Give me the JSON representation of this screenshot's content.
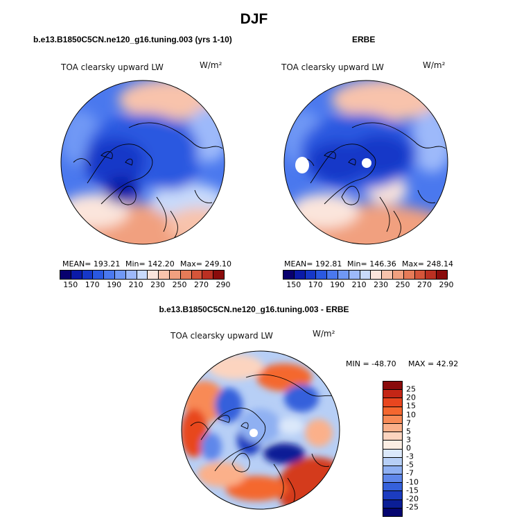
{
  "figure": {
    "title": "DJF",
    "panels": [
      {
        "title": "b.e13.B1850C5CN.ne120_g16.tuning.003 (yrs 1-10)",
        "variable": "TOA clearsky upward LW",
        "units": "W/m²",
        "stats": {
          "mean": "MEAN= 193.21",
          "min": "Min= 142.20",
          "max": "Max= 249.10"
        }
      },
      {
        "title": "ERBE",
        "variable": "TOA clearsky upward LW",
        "units": "W/m²",
        "stats": {
          "mean": "MEAN= 192.81",
          "min": "Min= 146.36",
          "max": "Max= 248.14"
        }
      },
      {
        "title": "b.e13.B1850C5CN.ne120_g16.tuning.003 - ERBE",
        "variable": "TOA clearsky upward LW",
        "units": "W/m²",
        "stats": {
          "min": "MIN = -48.70",
          "max": "MAX =  42.92"
        }
      }
    ],
    "abs_colorbar": {
      "tick_labels": [
        "150",
        "170",
        "190",
        "210",
        "230",
        "250",
        "270",
        "290"
      ],
      "colors": [
        "#08006e",
        "#0a1aa8",
        "#1637c8",
        "#2a58e0",
        "#4a78ee",
        "#7098f5",
        "#9db9fa",
        "#c8dafb",
        "#fbe5dc",
        "#f8c3ac",
        "#f1a07f",
        "#e57b58",
        "#d5553a",
        "#bb3022",
        "#8a0b0b"
      ]
    },
    "diff_colorbar": {
      "tick_labels": [
        "25",
        "20",
        "15",
        "10",
        "7",
        "5",
        "3",
        "0",
        "-3",
        "-5",
        "-7",
        "-10",
        "-15",
        "-20",
        "-25"
      ],
      "colors": [
        "#8a0b0b",
        "#c42616",
        "#e8461f",
        "#f4672f",
        "#f88a56",
        "#fbb08a",
        "#fcd4bf",
        "#fbede3",
        "#dbe8fa",
        "#b7cff6",
        "#8fb0f2",
        "#5f87ea",
        "#3561db",
        "#1c3cc0",
        "#0b1e96",
        "#050570"
      ]
    }
  },
  "chart_data": {
    "type": "heatmap",
    "projection": "north-polar stereographic",
    "season": "DJF",
    "variable": "TOA clearsky upward LW",
    "units": "W/m²",
    "maps": [
      {
        "name": "b.e13.B1850C5CN.ne120_g16.tuning.003 (yrs 1-10)",
        "mean": 193.21,
        "min": 142.2,
        "max": 249.1
      },
      {
        "name": "ERBE",
        "mean": 192.81,
        "min": 146.36,
        "max": 248.14
      },
      {
        "name": "b.e13.B1850C5CN.ne120_g16.tuning.003 - ERBE",
        "min": -48.7,
        "max": 42.92
      }
    ],
    "abs_levels": [
      150,
      160,
      170,
      180,
      190,
      200,
      210,
      220,
      230,
      240,
      250,
      260,
      270,
      280,
      290
    ],
    "diff_levels": [
      -25,
      -20,
      -15,
      -10,
      -7,
      -5,
      -3,
      0,
      3,
      5,
      7,
      10,
      15,
      20,
      25
    ]
  }
}
